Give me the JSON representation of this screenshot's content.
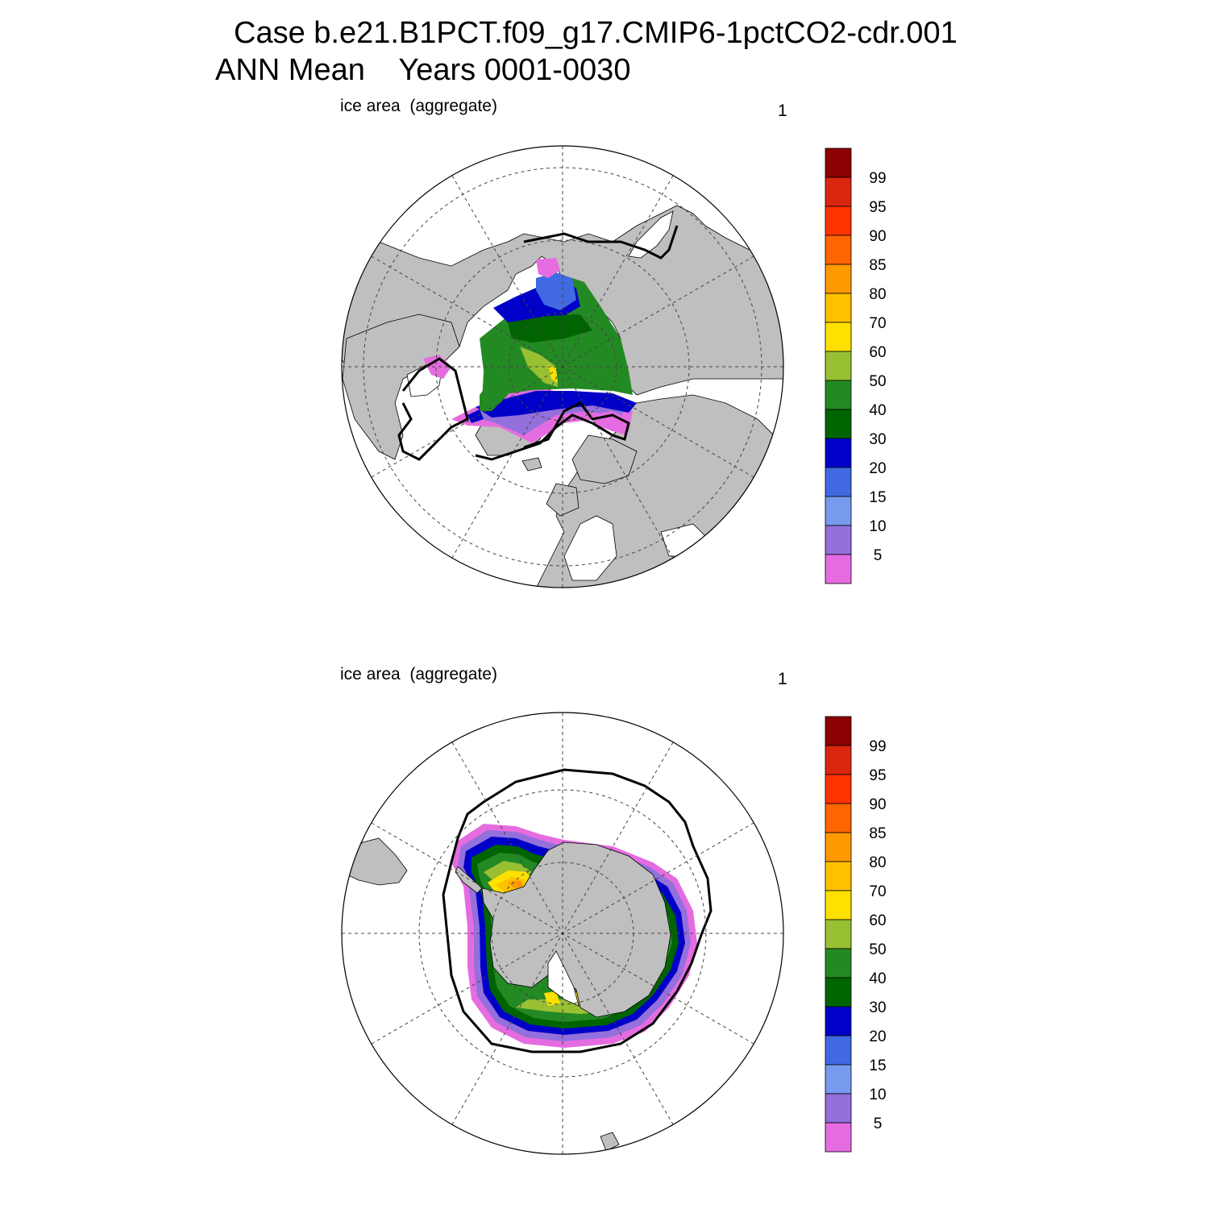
{
  "title": {
    "line1": "Case b.e21.B1PCT.f09_g17.CMIP6-1pctCO2-cdr.001",
    "line2": "ANN Mean    Years 0001-0030"
  },
  "panels": [
    {
      "id": "north",
      "label": "ice area  (aggregate)",
      "unit": "1"
    },
    {
      "id": "south",
      "label": "ice area  (aggregate)",
      "unit": "1"
    }
  ],
  "colorbar": {
    "levels": [
      "99",
      "95",
      "90",
      "85",
      "80",
      "70",
      "60",
      "50",
      "40",
      "30",
      "20",
      "15",
      "10",
      "5"
    ],
    "colors": [
      "#8b0000",
      "#d9260f",
      "#ff3300",
      "#ff6600",
      "#ff9900",
      "#ffc000",
      "#ffe100",
      "#99bf33",
      "#238a23",
      "#006400",
      "#0000c8",
      "#4169e1",
      "#7799ee",
      "#9370db",
      "#e56ce0"
    ]
  },
  "colors": {
    "land": "#bfbfbf",
    "ocean": "#ffffff",
    "ice_edge": "#000000"
  }
}
